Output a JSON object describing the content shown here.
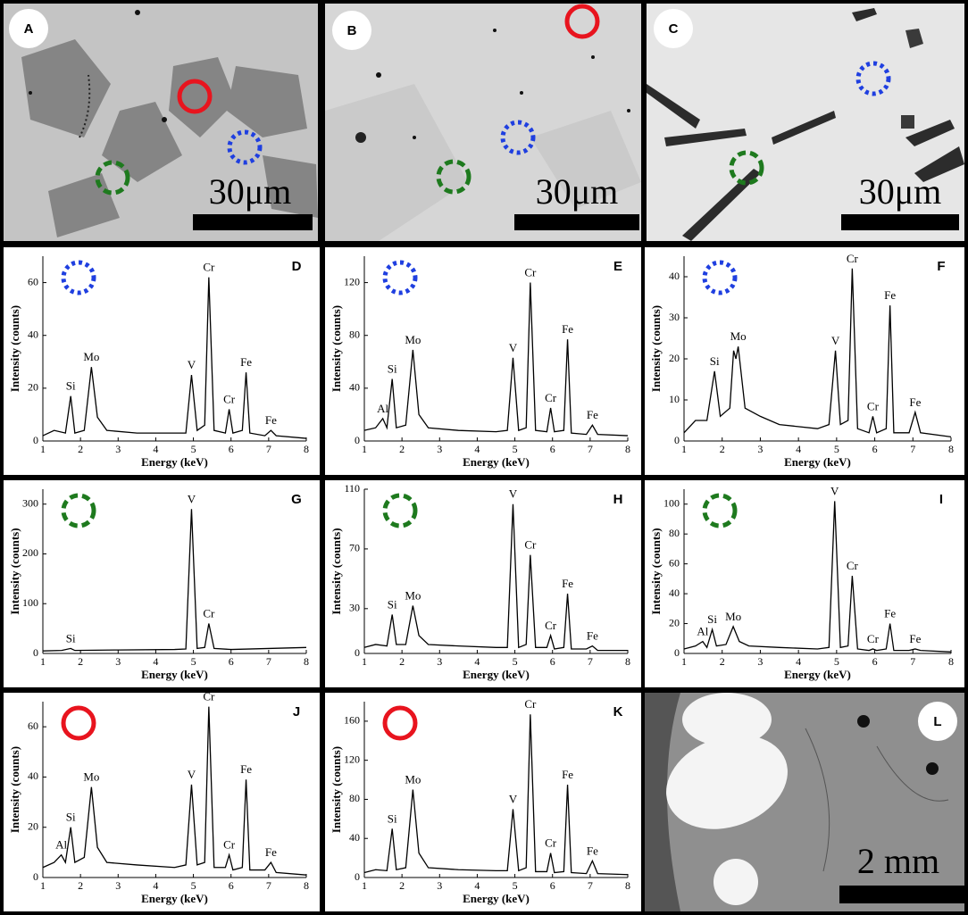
{
  "images": [
    {
      "label": "A",
      "scale_bar": "30μm"
    },
    {
      "label": "B",
      "scale_bar": "30μm"
    },
    {
      "label": "C",
      "scale_bar": "30μm"
    },
    {
      "label": "L",
      "scale_bar": "2 mm"
    }
  ],
  "chart_data": [
    {
      "type": "line",
      "label": "D",
      "xlabel": "Energy (keV)",
      "ylabel": "Intensity (counts)",
      "xlim": [
        1,
        8
      ],
      "xticks": [
        1,
        2,
        3,
        4,
        5,
        6,
        7,
        8
      ],
      "ylim": [
        0,
        70
      ],
      "yticks": [
        0,
        20,
        40,
        60
      ],
      "color": "#000000",
      "symbol": {
        "color": "#1f3fe0",
        "dash": "dotted"
      },
      "x": [
        1,
        1.3,
        1.6,
        1.74,
        1.85,
        2.1,
        2.29,
        2.45,
        2.7,
        3.5,
        4.5,
        4.8,
        4.95,
        5.1,
        5.3,
        5.41,
        5.55,
        5.85,
        5.95,
        6.05,
        6.3,
        6.4,
        6.5,
        6.9,
        7.06,
        7.2,
        8
      ],
      "values": [
        2,
        4,
        3,
        17,
        3,
        4,
        28,
        9,
        4,
        3,
        3,
        3,
        25,
        4,
        6,
        62,
        4,
        3,
        12,
        3,
        4,
        26,
        3,
        2,
        4,
        2,
        1
      ],
      "point_labels": [
        null,
        null,
        null,
        "Si",
        null,
        null,
        "Mo",
        null,
        null,
        null,
        null,
        null,
        "V",
        null,
        null,
        "Cr",
        null,
        null,
        "Cr",
        null,
        null,
        "Fe",
        null,
        null,
        "Fe",
        null,
        null
      ]
    },
    {
      "type": "line",
      "label": "E",
      "xlabel": "Energy (keV)",
      "ylabel": "Intensity (counts)",
      "xlim": [
        1,
        8
      ],
      "xticks": [
        1,
        2,
        3,
        4,
        5,
        6,
        7,
        8
      ],
      "ylim": [
        0,
        140
      ],
      "yticks": [
        0,
        40,
        80,
        120
      ],
      "color": "#000000",
      "symbol": {
        "color": "#1f3fe0",
        "dash": "dotted"
      },
      "x": [
        1,
        1.3,
        1.49,
        1.6,
        1.74,
        1.85,
        2.1,
        2.29,
        2.45,
        2.7,
        3.5,
        4.5,
        4.8,
        4.95,
        5.1,
        5.3,
        5.41,
        5.55,
        5.85,
        5.95,
        6.05,
        6.3,
        6.4,
        6.5,
        6.9,
        7.06,
        7.2,
        8
      ],
      "values": [
        8,
        10,
        17,
        10,
        47,
        10,
        12,
        69,
        20,
        10,
        8,
        7,
        8,
        63,
        8,
        10,
        120,
        8,
        7,
        25,
        7,
        8,
        77,
        6,
        5,
        12,
        5,
        4
      ],
      "point_labels": [
        null,
        null,
        "Al",
        null,
        "Si",
        null,
        null,
        "Mo",
        null,
        null,
        null,
        null,
        null,
        "V",
        null,
        null,
        "Cr",
        null,
        null,
        "Cr",
        null,
        null,
        "Fe",
        null,
        null,
        "Fe",
        null,
        null
      ]
    },
    {
      "type": "line",
      "label": "F",
      "xlabel": "Energy (keV)",
      "ylabel": "Intensity (counts)",
      "xlim": [
        1,
        8
      ],
      "xticks": [
        1,
        2,
        3,
        4,
        5,
        6,
        7,
        8
      ],
      "ylim": [
        0,
        45
      ],
      "yticks": [
        0,
        10,
        20,
        30,
        40
      ],
      "color": "#000000",
      "symbol": {
        "color": "#1f3fe0",
        "dash": "dotted"
      },
      "x": [
        1,
        1.3,
        1.6,
        1.8,
        1.95,
        2.2,
        2.3,
        2.36,
        2.42,
        2.6,
        3,
        3.5,
        4.5,
        4.8,
        4.97,
        5.1,
        5.3,
        5.41,
        5.55,
        5.85,
        5.95,
        6.05,
        6.3,
        6.4,
        6.5,
        6.9,
        7.06,
        7.2,
        8
      ],
      "values": [
        2,
        5,
        5,
        17,
        6,
        8,
        22,
        20,
        23,
        8,
        6,
        4,
        3,
        4,
        22,
        4,
        5,
        42,
        3,
        2,
        6,
        2,
        3,
        33,
        2,
        2,
        7,
        2,
        1
      ],
      "point_labels": [
        null,
        null,
        null,
        "Si",
        null,
        null,
        null,
        null,
        "Mo",
        null,
        null,
        null,
        null,
        null,
        "V",
        null,
        null,
        "Cr",
        null,
        null,
        "Cr",
        null,
        null,
        "Fe",
        null,
        null,
        "Fe",
        null,
        null
      ]
    },
    {
      "type": "line",
      "label": "G",
      "xlabel": "Energy (keV)",
      "ylabel": "Intensity (counts)",
      "xlim": [
        1,
        8
      ],
      "xticks": [
        1,
        2,
        3,
        4,
        5,
        6,
        7,
        8
      ],
      "ylim": [
        0,
        330
      ],
      "yticks": [
        0,
        100,
        200,
        300
      ],
      "color": "#000000",
      "symbol": {
        "color": "#1e7a1e",
        "dash": "dashed"
      },
      "x": [
        1,
        1.5,
        1.74,
        1.85,
        3,
        4.5,
        4.8,
        4.95,
        5.1,
        5.3,
        5.41,
        5.55,
        6,
        7,
        8
      ],
      "values": [
        5,
        6,
        10,
        6,
        7,
        8,
        9,
        290,
        10,
        12,
        60,
        10,
        8,
        10,
        12
      ],
      "point_labels": [
        null,
        null,
        "Si",
        null,
        null,
        null,
        null,
        "V",
        null,
        null,
        "Cr",
        null,
        null,
        null,
        null
      ]
    },
    {
      "type": "line",
      "label": "H",
      "xlabel": "Energy (keV)",
      "ylabel": "Intensity (counts)",
      "xlim": [
        1,
        8
      ],
      "xticks": [
        1,
        2,
        3,
        4,
        5,
        6,
        7,
        8
      ],
      "ylim": [
        0,
        110
      ],
      "yticks": [
        0,
        30,
        70,
        110
      ],
      "color": "#000000",
      "symbol": {
        "color": "#1e7a1e",
        "dash": "dashed"
      },
      "x": [
        1,
        1.3,
        1.6,
        1.74,
        1.85,
        2.1,
        2.29,
        2.45,
        2.7,
        3.5,
        4.5,
        4.8,
        4.95,
        5.1,
        5.3,
        5.41,
        5.55,
        5.85,
        5.95,
        6.05,
        6.3,
        6.4,
        6.5,
        6.9,
        7.06,
        7.2,
        8
      ],
      "values": [
        4,
        6,
        5,
        26,
        6,
        6,
        32,
        12,
        6,
        5,
        4,
        4,
        100,
        4,
        6,
        66,
        4,
        4,
        12,
        3,
        4,
        40,
        3,
        3,
        5,
        2,
        2
      ],
      "point_labels": [
        null,
        null,
        null,
        "Si",
        null,
        null,
        "Mo",
        null,
        null,
        null,
        null,
        null,
        "V",
        null,
        null,
        "Cr",
        null,
        null,
        "Cr",
        null,
        null,
        "Fe",
        null,
        null,
        "Fe",
        null,
        null
      ]
    },
    {
      "type": "line",
      "label": "I",
      "xlabel": "Energy (keV)",
      "ylabel": "Intensity (counts)",
      "xlim": [
        1,
        8
      ],
      "xticks": [
        1,
        2,
        3,
        4,
        5,
        6,
        7,
        8
      ],
      "ylim": [
        0,
        110
      ],
      "yticks": [
        0,
        20,
        40,
        60,
        80,
        100
      ],
      "color": "#000000",
      "symbol": {
        "color": "#1e7a1e",
        "dash": "dashed"
      },
      "x": [
        1,
        1.3,
        1.49,
        1.6,
        1.74,
        1.85,
        2.1,
        2.29,
        2.45,
        2.7,
        3.5,
        4.5,
        4.8,
        4.95,
        5.1,
        5.3,
        5.41,
        5.55,
        5.85,
        5.95,
        6.05,
        6.3,
        6.4,
        6.5,
        6.9,
        7.06,
        7.2,
        8
      ],
      "values": [
        3,
        5,
        8,
        4,
        16,
        5,
        6,
        18,
        8,
        5,
        4,
        3,
        4,
        102,
        4,
        5,
        52,
        3,
        2,
        3,
        2,
        3,
        20,
        2,
        2,
        3,
        2,
        1
      ],
      "point_labels": [
        null,
        null,
        "Al",
        null,
        "Si",
        null,
        null,
        "Mo",
        null,
        null,
        null,
        null,
        null,
        "V",
        null,
        null,
        "Cr",
        null,
        null,
        "Cr",
        null,
        null,
        "Fe",
        null,
        null,
        "Fe",
        null,
        null
      ]
    },
    {
      "type": "line",
      "label": "J",
      "xlabel": "Energy (keV)",
      "ylabel": "Intensity (counts)",
      "xlim": [
        1,
        8
      ],
      "xticks": [
        1,
        2,
        3,
        4,
        5,
        6,
        7,
        8
      ],
      "ylim": [
        0,
        70
      ],
      "yticks": [
        0,
        20,
        40,
        60
      ],
      "color": "#000000",
      "symbol": {
        "color": "#e8141e",
        "dash": "solid"
      },
      "x": [
        1,
        1.3,
        1.49,
        1.6,
        1.74,
        1.85,
        2.1,
        2.29,
        2.45,
        2.7,
        3.5,
        4.5,
        4.8,
        4.95,
        5.1,
        5.3,
        5.41,
        5.55,
        5.85,
        5.95,
        6.05,
        6.3,
        6.4,
        6.5,
        6.9,
        7.06,
        7.2,
        8
      ],
      "values": [
        4,
        6,
        9,
        6,
        20,
        6,
        8,
        36,
        12,
        6,
        5,
        4,
        5,
        37,
        5,
        6,
        68,
        4,
        4,
        9,
        3,
        4,
        39,
        3,
        3,
        6,
        2,
        1
      ],
      "point_labels": [
        null,
        null,
        "Al",
        null,
        "Si",
        null,
        null,
        "Mo",
        null,
        null,
        null,
        null,
        null,
        "V",
        null,
        null,
        "Cr",
        null,
        null,
        "Cr",
        null,
        null,
        "Fe",
        null,
        null,
        "Fe",
        null,
        null
      ]
    },
    {
      "type": "line",
      "label": "K",
      "xlabel": "Energy (keV)",
      "ylabel": "Intensity (counts)",
      "xlim": [
        1,
        8
      ],
      "xticks": [
        1,
        2,
        3,
        4,
        5,
        6,
        7,
        8
      ],
      "ylim": [
        0,
        180
      ],
      "yticks": [
        0,
        40,
        80,
        120,
        160
      ],
      "color": "#000000",
      "symbol": {
        "color": "#e8141e",
        "dash": "solid"
      },
      "x": [
        1,
        1.3,
        1.6,
        1.74,
        1.85,
        2.1,
        2.29,
        2.45,
        2.7,
        3.5,
        4.5,
        4.8,
        4.95,
        5.1,
        5.3,
        5.41,
        5.55,
        5.85,
        5.95,
        6.05,
        6.3,
        6.4,
        6.5,
        6.9,
        7.06,
        7.2,
        8
      ],
      "values": [
        5,
        8,
        7,
        50,
        8,
        10,
        90,
        25,
        10,
        8,
        7,
        7,
        70,
        7,
        10,
        167,
        6,
        6,
        25,
        5,
        6,
        95,
        5,
        4,
        17,
        4,
        3
      ],
      "point_labels": [
        null,
        null,
        null,
        "Si",
        null,
        null,
        "Mo",
        null,
        null,
        null,
        null,
        null,
        "V",
        null,
        null,
        "Cr",
        null,
        null,
        "Cr",
        null,
        null,
        "Fe",
        null,
        null,
        "Fe",
        null,
        null
      ]
    }
  ]
}
